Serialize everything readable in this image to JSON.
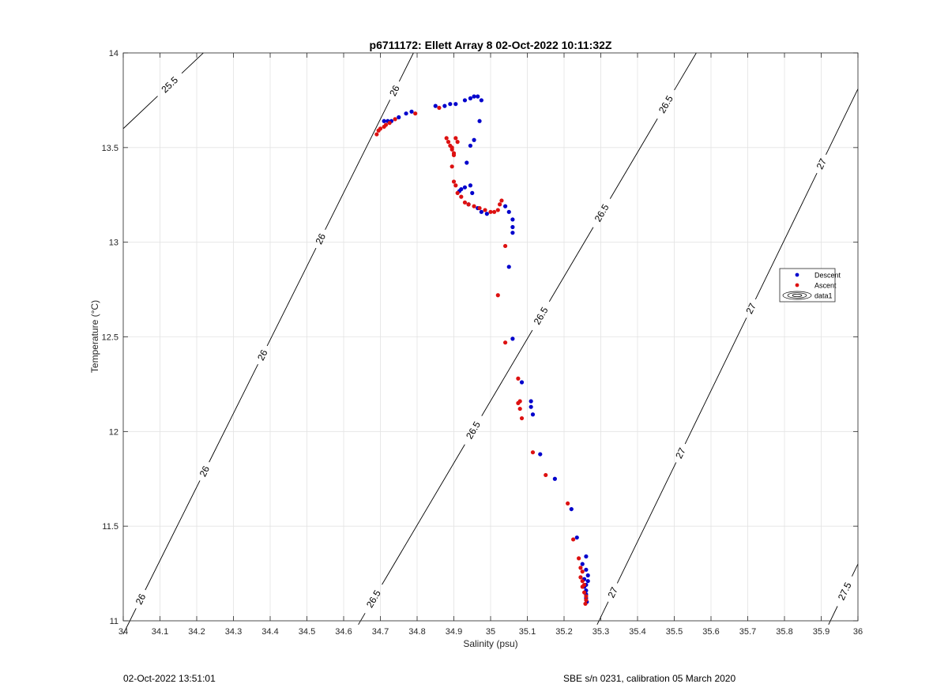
{
  "chart_data": {
    "type": "scatter",
    "title": "p6711172: Ellett Array 8 02-Oct-2022 10:11:32Z",
    "xlabel": "Salinity (psu)",
    "ylabel": "Temperature (°C)",
    "xlim": [
      34,
      36
    ],
    "ylim": [
      11,
      14
    ],
    "xticks": [
      "34",
      "34.1",
      "34.2",
      "34.3",
      "34.4",
      "34.5",
      "34.6",
      "34.7",
      "34.8",
      "34.9",
      "35",
      "35.1",
      "35.2",
      "35.3",
      "35.4",
      "35.5",
      "35.6",
      "35.7",
      "35.8",
      "35.9",
      "36"
    ],
    "yticks": [
      "11",
      "11.5",
      "12",
      "12.5",
      "13",
      "13.5",
      "14"
    ],
    "grid": true,
    "legend_location": "east",
    "legend": [
      "Descent",
      "Ascent",
      "data1"
    ],
    "series": [
      {
        "name": "Descent",
        "color": "#0000cc",
        "points": [
          [
            34.71,
            13.64
          ],
          [
            34.72,
            13.64
          ],
          [
            34.73,
            13.64
          ],
          [
            34.75,
            13.66
          ],
          [
            34.77,
            13.68
          ],
          [
            34.785,
            13.69
          ],
          [
            34.85,
            13.72
          ],
          [
            34.875,
            13.72
          ],
          [
            34.89,
            13.73
          ],
          [
            34.905,
            13.73
          ],
          [
            34.93,
            13.75
          ],
          [
            34.945,
            13.76
          ],
          [
            34.955,
            13.77
          ],
          [
            34.965,
            13.77
          ],
          [
            34.975,
            13.75
          ],
          [
            34.97,
            13.64
          ],
          [
            34.955,
            13.54
          ],
          [
            34.945,
            13.51
          ],
          [
            34.935,
            13.42
          ],
          [
            34.945,
            13.3
          ],
          [
            34.93,
            13.29
          ],
          [
            34.92,
            13.28
          ],
          [
            34.915,
            13.27
          ],
          [
            34.95,
            13.26
          ],
          [
            34.94,
            13.2
          ],
          [
            34.965,
            13.18
          ],
          [
            34.975,
            13.16
          ],
          [
            34.99,
            13.15
          ],
          [
            35.04,
            13.19
          ],
          [
            35.05,
            13.16
          ],
          [
            35.06,
            13.12
          ],
          [
            35.06,
            13.08
          ],
          [
            35.06,
            13.05
          ],
          [
            35.05,
            12.87
          ],
          [
            35.06,
            12.49
          ],
          [
            35.085,
            12.26
          ],
          [
            35.11,
            12.16
          ],
          [
            35.11,
            12.13
          ],
          [
            35.115,
            12.09
          ],
          [
            35.135,
            11.88
          ],
          [
            35.175,
            11.75
          ],
          [
            35.22,
            11.59
          ],
          [
            35.235,
            11.44
          ],
          [
            35.26,
            11.34
          ],
          [
            35.25,
            11.3
          ],
          [
            35.26,
            11.27
          ],
          [
            35.265,
            11.24
          ],
          [
            35.255,
            11.22
          ],
          [
            35.265,
            11.21
          ],
          [
            35.26,
            11.19
          ],
          [
            35.255,
            11.18
          ],
          [
            35.26,
            11.16
          ],
          [
            35.26,
            11.14
          ],
          [
            35.26,
            11.12
          ],
          [
            35.262,
            11.1
          ]
        ]
      },
      {
        "name": "Ascent",
        "color": "#dd1111",
        "points": [
          [
            34.69,
            13.57
          ],
          [
            34.695,
            13.59
          ],
          [
            34.7,
            13.6
          ],
          [
            34.71,
            13.61
          ],
          [
            34.715,
            13.62
          ],
          [
            34.725,
            13.63
          ],
          [
            34.74,
            13.65
          ],
          [
            34.795,
            13.68
          ],
          [
            34.86,
            13.71
          ],
          [
            34.88,
            13.55
          ],
          [
            34.885,
            13.53
          ],
          [
            34.89,
            13.51
          ],
          [
            34.895,
            13.49
          ],
          [
            34.9,
            13.47
          ],
          [
            34.905,
            13.55
          ],
          [
            34.91,
            13.53
          ],
          [
            34.895,
            13.5
          ],
          [
            34.9,
            13.46
          ],
          [
            34.895,
            13.4
          ],
          [
            34.9,
            13.32
          ],
          [
            34.905,
            13.3
          ],
          [
            34.91,
            13.26
          ],
          [
            34.92,
            13.24
          ],
          [
            34.93,
            13.21
          ],
          [
            34.94,
            13.2
          ],
          [
            34.955,
            13.19
          ],
          [
            34.97,
            13.18
          ],
          [
            34.985,
            13.17
          ],
          [
            35.0,
            13.16
          ],
          [
            35.01,
            13.16
          ],
          [
            35.02,
            13.17
          ],
          [
            35.025,
            13.2
          ],
          [
            35.03,
            13.22
          ],
          [
            35.04,
            12.98
          ],
          [
            35.02,
            12.72
          ],
          [
            35.04,
            12.47
          ],
          [
            35.075,
            12.28
          ],
          [
            35.08,
            12.16
          ],
          [
            35.075,
            12.15
          ],
          [
            35.08,
            12.12
          ],
          [
            35.085,
            12.07
          ],
          [
            35.115,
            11.89
          ],
          [
            35.15,
            11.77
          ],
          [
            35.21,
            11.62
          ],
          [
            35.225,
            11.43
          ],
          [
            35.24,
            11.33
          ],
          [
            35.245,
            11.28
          ],
          [
            35.25,
            11.26
          ],
          [
            35.245,
            11.23
          ],
          [
            35.25,
            11.21
          ],
          [
            35.255,
            11.19
          ],
          [
            35.25,
            11.18
          ],
          [
            35.255,
            11.15
          ],
          [
            35.26,
            11.13
          ],
          [
            35.26,
            11.11
          ],
          [
            35.258,
            11.09
          ]
        ]
      }
    ],
    "contours": [
      {
        "label": "25.5",
        "segment": [
          [
            34.0,
            13.6
          ],
          [
            34.218,
            14.0
          ]
        ],
        "labels_at": [
          0.58
        ]
      },
      {
        "label": "26",
        "segment": [
          [
            34.0,
            10.93
          ],
          [
            34.79,
            14.0
          ]
        ],
        "labels_at": [
          0.06,
          0.28,
          0.48,
          0.68,
          0.935
        ]
      },
      {
        "label": "26.5",
        "segment": [
          [
            34.64,
            10.98
          ],
          [
            35.56,
            14.0
          ]
        ],
        "labels_at": [
          0.045,
          0.34,
          0.54,
          0.72,
          0.91
        ]
      },
      {
        "label": "27",
        "segment": [
          [
            35.29,
            10.98
          ],
          [
            36.0,
            13.81
          ]
        ],
        "labels_at": [
          0.06,
          0.32,
          0.59,
          0.86
        ]
      },
      {
        "label": "27.5",
        "segment": [
          [
            35.92,
            10.98
          ],
          [
            36.0,
            11.3
          ]
        ],
        "labels_at": [
          0.55
        ]
      }
    ]
  },
  "footer": {
    "left": "02-Oct-2022 13:51:01",
    "right": "SBE s/n 0231, calibration 05 March 2020"
  }
}
